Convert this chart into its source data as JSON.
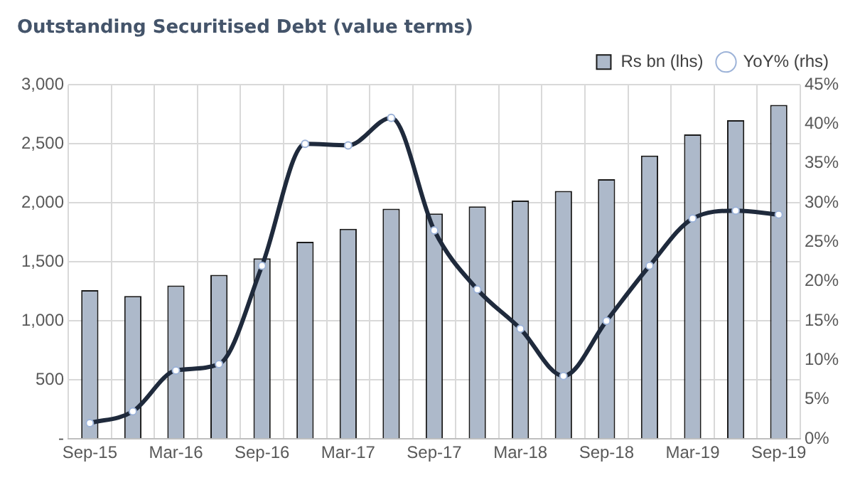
{
  "chart_data": {
    "type": "bar",
    "title": "Outstanding Securitised Debt (value terms)",
    "categories": [
      "Sep-15",
      null,
      "Mar-16",
      null,
      "Sep-16",
      null,
      "Mar-17",
      null,
      "Sep-17",
      null,
      "Mar-18",
      null,
      "Sep-18",
      null,
      "Mar-19",
      null,
      "Sep-19"
    ],
    "series": [
      {
        "name": "Rs bn (lhs)",
        "color": "#adb9ca",
        "values": [
          1260,
          1210,
          1300,
          1390,
          1530,
          1670,
          1780,
          1950,
          1910,
          1970,
          2020,
          2100,
          2200,
          2400,
          2580,
          2700,
          2830
        ]
      },
      {
        "name": "YoY% (rhs)",
        "type": "line",
        "axis": "y2",
        "color": "#1f2a3c",
        "values": [
          2,
          3.5,
          8.7,
          9.5,
          22,
          37.5,
          37.3,
          40.8,
          26.5,
          19,
          14,
          8,
          15,
          22,
          28,
          29,
          28.5
        ]
      }
    ],
    "ylim": [
      0,
      3000
    ],
    "yticks": [
      {
        "value": 0,
        "label": "-"
      },
      {
        "value": 500,
        "label": "500"
      },
      {
        "value": 1000,
        "label": "1,000"
      },
      {
        "value": 1500,
        "label": "1,500"
      },
      {
        "value": 2000,
        "label": "2,000"
      },
      {
        "value": 2500,
        "label": "2,500"
      },
      {
        "value": 3000,
        "label": "3,000"
      }
    ],
    "y2lim": [
      0,
      45
    ],
    "y2ticks": [
      {
        "value": 0,
        "label": "0%"
      },
      {
        "value": 5,
        "label": "5%"
      },
      {
        "value": 10,
        "label": "10%"
      },
      {
        "value": 15,
        "label": "15%"
      },
      {
        "value": 20,
        "label": "20%"
      },
      {
        "value": 25,
        "label": "25%"
      },
      {
        "value": 30,
        "label": "30%"
      },
      {
        "value": 35,
        "label": "35%"
      },
      {
        "value": 40,
        "label": "40%"
      },
      {
        "value": 45,
        "label": "45%"
      }
    ],
    "grid": true,
    "legend": "top right",
    "marker": "circle",
    "line_style": "solid"
  }
}
